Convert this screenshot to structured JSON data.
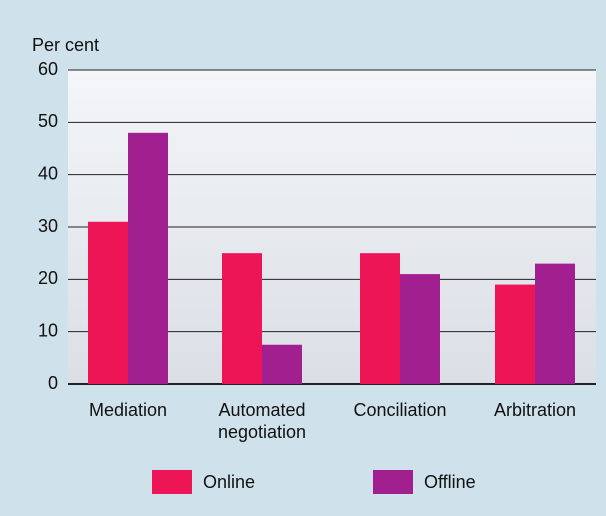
{
  "chart_data": {
    "type": "bar",
    "y_label": "Per cent",
    "categories": [
      "Mediation",
      "Automated negotiation",
      "Conciliation",
      "Arbitration"
    ],
    "series": [
      {
        "name": "Online",
        "color": "#ee1556",
        "values": [
          31,
          25,
          25,
          19
        ]
      },
      {
        "name": "Offline",
        "color": "#a21f8f",
        "values": [
          48,
          7.5,
          21,
          23
        ]
      }
    ],
    "ylim": [
      0,
      60
    ],
    "yticks": [
      0,
      10,
      20,
      30,
      40,
      50,
      60
    ],
    "grid": true,
    "legend": "bottom"
  }
}
